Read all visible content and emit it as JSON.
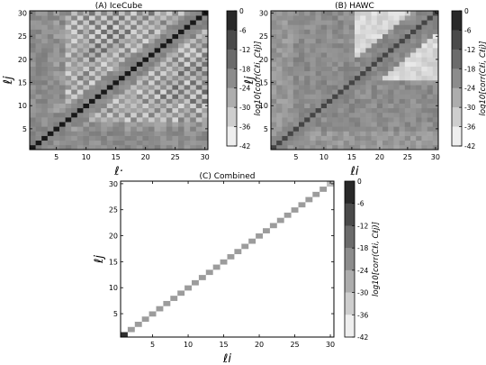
{
  "chart_data": [
    {
      "type": "heatmap",
      "title": "(A) IceCube",
      "xlabel": "ℓ·",
      "ylabel": "ℓj",
      "x_ticks": [
        5,
        10,
        15,
        20,
        25,
        30
      ],
      "y_ticks": [
        5,
        10,
        15,
        20,
        25,
        30
      ],
      "xlim": [
        0.5,
        30.5
      ],
      "ylim": [
        0.5,
        30.5
      ],
      "diagonal_value": 0,
      "colorbar": {
        "label": "log10[corr(Cℓi, Cℓj)]",
        "ticks": [
          0,
          -6,
          -12,
          -18,
          -24,
          -30,
          -36,
          -42
        ],
        "range": [
          -42,
          0
        ]
      }
    },
    {
      "type": "heatmap",
      "title": "(B) HAWC",
      "xlabel": "ℓi",
      "ylabel": "ℓj",
      "x_ticks": [
        5,
        10,
        15,
        20,
        25,
        30
      ],
      "y_ticks": [
        5,
        10,
        15,
        20,
        25,
        30
      ],
      "xlim": [
        0.5,
        30.5
      ],
      "ylim": [
        0.5,
        30.5
      ],
      "diagonal_value": 0,
      "colorbar": {
        "label": "log10[corr(Cℓi, Cℓj)]",
        "ticks": [
          0,
          -6,
          -12,
          -18,
          -24,
          -30,
          -36,
          -42
        ],
        "range": [
          -42,
          0
        ]
      }
    },
    {
      "type": "heatmap",
      "title": "(C) Combined",
      "xlabel": "ℓi",
      "ylabel": "ℓj",
      "x_ticks": [
        5,
        10,
        15,
        20,
        25,
        30
      ],
      "y_ticks": [
        5,
        10,
        15,
        20,
        25,
        30
      ],
      "xlim": [
        0.5,
        30.5
      ],
      "ylim": [
        0.5,
        30.5
      ],
      "diagonal_value": -24,
      "off_diagonal_value": -42,
      "colorbar": {
        "label": "log10[corr(Cℓi, Cℓj)]",
        "ticks": [
          0,
          -6,
          -12,
          -18,
          -24,
          -30,
          -36,
          -42
        ],
        "range": [
          -42,
          0
        ]
      }
    }
  ]
}
